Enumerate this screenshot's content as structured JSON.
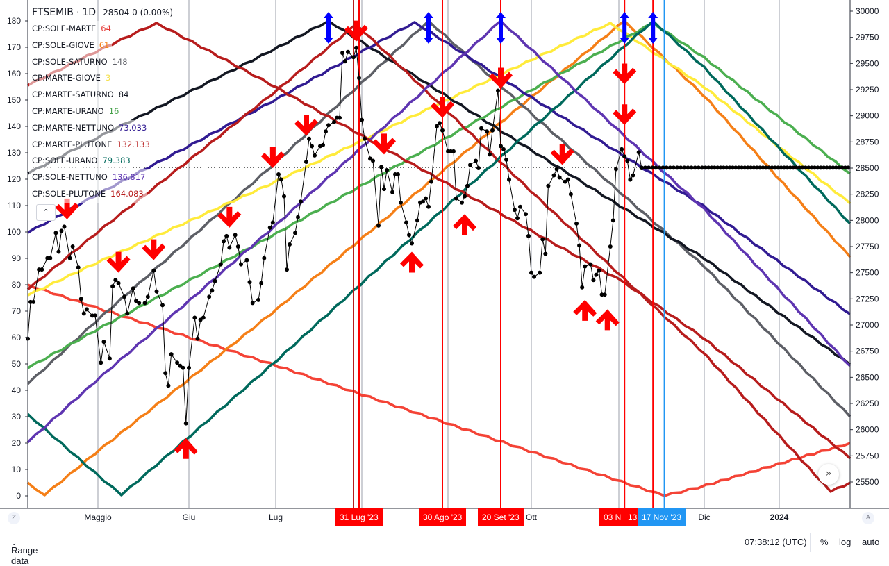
{
  "legend": {
    "symbol": "FTSEMIB",
    "interval": "1D",
    "quote": "28504 0 (0.00%)",
    "items": [
      {
        "label": "CP:SOLE-MARTE",
        "value": "64",
        "color": "#e53935"
      },
      {
        "label": "CP:SOLE-GIOVE",
        "value": "61",
        "color": "#f57f17"
      },
      {
        "label": "CP:SOLE-SATURNO",
        "value": "148",
        "color": "#5d5f66"
      },
      {
        "label": "CP:MARTE-GIOVE",
        "value": "3",
        "color": "#ffeb3b"
      },
      {
        "label": "CP:MARTE-SATURNO",
        "value": "84",
        "color": "#131722"
      },
      {
        "label": "CP:MARTE-URANO",
        "value": "16",
        "color": "#43a047"
      },
      {
        "label": "CP:MARTE-NETTUNO",
        "value": "73.033",
        "color": "#311b92"
      },
      {
        "label": "CP:MARTE-PLUTONE",
        "value": "132.133",
        "color": "#b71c1c"
      },
      {
        "label": "CP:SOLE-URANO",
        "value": "79.383",
        "color": "#00695c"
      },
      {
        "label": "CP:SOLE-NETTUNO",
        "value": "136.817",
        "color": "#5e35b1"
      },
      {
        "label": "CP:SOLE-PLUTONE",
        "value": "164.083",
        "color": "#b71c1c"
      }
    ],
    "collapse_icon": "chevron-up-icon"
  },
  "chart_data": {
    "type": "line",
    "title": "FTSEMIB · 1D",
    "x_range": [
      "2023-04-06",
      "2024-01-30"
    ],
    "x_ticks": [
      {
        "date": "2023-05-01",
        "label": "Maggio"
      },
      {
        "date": "2023-06-01",
        "label": "Giu"
      },
      {
        "date": "2023-07-01",
        "label": "Lug"
      },
      {
        "date": "2023-10-01",
        "label": "Ott"
      },
      {
        "date": "2023-12-01",
        "label": "Dic"
      },
      {
        "date": "2024-01-01",
        "label": "2024",
        "bold": true
      }
    ],
    "grid_dates": [
      "2023-05-01",
      "2023-06-01",
      "2023-07-01",
      "2023-08-01",
      "2023-09-01",
      "2023-10-01",
      "2023-11-01",
      "2023-12-01",
      "2024-01-01"
    ],
    "left_axis": {
      "range": [
        0,
        180
      ],
      "ticks": [
        0,
        10,
        20,
        30,
        40,
        50,
        60,
        70,
        80,
        90,
        100,
        110,
        120,
        130,
        140,
        150,
        160,
        170,
        180
      ]
    },
    "right_axis": {
      "range": [
        25500,
        30000
      ],
      "ticks": [
        25500,
        25750,
        26000,
        26250,
        26500,
        26750,
        27000,
        27250,
        27500,
        27750,
        28000,
        28250,
        28500,
        28750,
        29000,
        29250,
        29500,
        29750,
        30000
      ]
    },
    "cycle_series": [
      {
        "name": "CP:SOLE-MARTE",
        "color": "#f44336",
        "points": [
          [
            "2023-04-06",
            80
          ],
          [
            "2023-11-17",
            0
          ],
          [
            "2024-01-30",
            20
          ]
        ]
      },
      {
        "name": "CP:SOLE-GIOVE",
        "color": "#f57f17",
        "points": [
          [
            "2023-04-06",
            5
          ],
          [
            "2023-04-12",
            0.3
          ],
          [
            "2023-11-03",
            180
          ],
          [
            "2024-01-30",
            90.5
          ]
        ]
      },
      {
        "name": "CP:SOLE-SATURNO",
        "color": "#5d5f66",
        "points": [
          [
            "2023-04-06",
            42.4
          ],
          [
            "2023-08-25",
            180
          ],
          [
            "2024-01-30",
            30
          ]
        ]
      },
      {
        "name": "CP:MARTE-GIOVE",
        "color": "#ffeb3b",
        "points": [
          [
            "2023-04-06",
            76
          ],
          [
            "2023-10-29",
            179.2
          ],
          [
            "2024-01-30",
            110.8
          ]
        ]
      },
      {
        "name": "CP:MARTE-SATURNO",
        "color": "#131722",
        "points": [
          [
            "2023-04-06",
            122.1
          ],
          [
            "2023-07-20",
            180
          ],
          [
            "2024-01-30",
            49.7
          ]
        ]
      },
      {
        "name": "CP:MARTE-URANO",
        "color": "#4caf50",
        "points": [
          [
            "2023-04-06",
            48.4
          ],
          [
            "2023-11-13",
            179.2
          ],
          [
            "2024-01-30",
            122.1
          ]
        ]
      },
      {
        "name": "CP:MARTE-NETTUNO",
        "color": "#311b92",
        "points": [
          [
            "2023-04-06",
            99.7
          ],
          [
            "2023-08-20",
            179.5
          ],
          [
            "2024-01-30",
            68.9
          ]
        ]
      },
      {
        "name": "CP:MARTE-PLUTONE",
        "color": "#b71c1c",
        "points": [
          [
            "2023-04-06",
            78.2
          ],
          [
            "2023-07-30",
            178.7
          ],
          [
            "2024-01-22",
            1.6
          ],
          [
            "2024-01-30",
            5
          ]
        ]
      },
      {
        "name": "CP:SOLE-URANO",
        "color": "#00695c",
        "points": [
          [
            "2023-04-06",
            31
          ],
          [
            "2023-05-09",
            0.3
          ],
          [
            "2023-11-13",
            180
          ],
          [
            "2024-01-30",
            103.2
          ]
        ]
      },
      {
        "name": "CP:SOLE-NETTUNO",
        "color": "#5e35b1",
        "points": [
          [
            "2023-04-06",
            20.3
          ],
          [
            "2023-09-20",
            180
          ],
          [
            "2024-01-30",
            49.2
          ]
        ]
      },
      {
        "name": "CP:SOLE-PLUTONE",
        "color": "#b71c1c",
        "points": [
          [
            "2023-04-06",
            155.5
          ],
          [
            "2023-05-21",
            179.2
          ],
          [
            "2023-11-03",
            80.8
          ],
          [
            "2024-01-30",
            14.2
          ]
        ]
      }
    ],
    "price": {
      "name": "FTSEMIB",
      "axis": "right",
      "points": [
        [
          "2023-04-06",
          26870
        ],
        [
          "2023-04-07",
          27220
        ],
        [
          "2023-04-08",
          27220
        ],
        [
          "2023-04-10",
          27530
        ],
        [
          "2023-04-11",
          27530
        ],
        [
          "2023-04-13",
          27640
        ],
        [
          "2023-04-14",
          27640
        ],
        [
          "2023-04-16",
          27880
        ],
        [
          "2023-04-17",
          27700
        ],
        [
          "2023-04-18",
          27900
        ],
        [
          "2023-04-19",
          27940
        ],
        [
          "2023-04-21",
          27640
        ],
        [
          "2023-04-22",
          27750
        ],
        [
          "2023-04-24",
          27550
        ],
        [
          "2023-04-25",
          27250
        ],
        [
          "2023-04-26",
          27110
        ],
        [
          "2023-04-27",
          27150
        ],
        [
          "2023-04-29",
          27090
        ],
        [
          "2023-04-30",
          27090
        ],
        [
          "2023-05-02",
          26640
        ],
        [
          "2023-05-03",
          26840
        ],
        [
          "2023-05-05",
          26680
        ],
        [
          "2023-05-06",
          27370
        ],
        [
          "2023-05-07",
          27430
        ],
        [
          "2023-05-08",
          27400
        ],
        [
          "2023-05-10",
          27270
        ],
        [
          "2023-05-11",
          27110
        ],
        [
          "2023-05-13",
          27350
        ],
        [
          "2023-05-14",
          27230
        ],
        [
          "2023-05-15",
          27210
        ],
        [
          "2023-05-17",
          27210
        ],
        [
          "2023-05-18",
          27270
        ],
        [
          "2023-05-20",
          27520
        ],
        [
          "2023-05-21",
          27320
        ],
        [
          "2023-05-23",
          27190
        ],
        [
          "2023-05-24",
          26540
        ],
        [
          "2023-05-25",
          26420
        ],
        [
          "2023-05-26",
          26720
        ],
        [
          "2023-05-28",
          26640
        ],
        [
          "2023-05-29",
          26610
        ],
        [
          "2023-05-30",
          26590
        ],
        [
          "2023-05-31",
          26060
        ],
        [
          "2023-06-01",
          26590
        ],
        [
          "2023-06-03",
          27070
        ],
        [
          "2023-06-04",
          26870
        ],
        [
          "2023-06-05",
          27050
        ],
        [
          "2023-06-06",
          27070
        ],
        [
          "2023-06-08",
          27270
        ],
        [
          "2023-06-09",
          27330
        ],
        [
          "2023-06-10",
          27420
        ],
        [
          "2023-06-12",
          27580
        ],
        [
          "2023-06-13",
          27800
        ],
        [
          "2023-06-14",
          27850
        ],
        [
          "2023-06-15",
          27740
        ],
        [
          "2023-06-17",
          27860
        ],
        [
          "2023-06-18",
          27750
        ],
        [
          "2023-06-19",
          27580
        ],
        [
          "2023-06-21",
          27620
        ],
        [
          "2023-06-22",
          27410
        ],
        [
          "2023-06-23",
          27210
        ],
        [
          "2023-06-25",
          27240
        ],
        [
          "2023-06-26",
          27400
        ],
        [
          "2023-06-27",
          27640
        ],
        [
          "2023-06-29",
          27930
        ],
        [
          "2023-06-30",
          27980
        ],
        [
          "2023-07-02",
          28440
        ],
        [
          "2023-07-03",
          28390
        ],
        [
          "2023-07-04",
          28230
        ],
        [
          "2023-07-05",
          27530
        ],
        [
          "2023-07-06",
          27770
        ],
        [
          "2023-07-08",
          27880
        ],
        [
          "2023-07-09",
          28030
        ],
        [
          "2023-07-10",
          28180
        ],
        [
          "2023-07-12",
          28560
        ],
        [
          "2023-07-13",
          28780
        ],
        [
          "2023-07-14",
          28710
        ],
        [
          "2023-07-15",
          28620
        ],
        [
          "2023-07-17",
          28710
        ],
        [
          "2023-07-18",
          28720
        ],
        [
          "2023-07-19",
          28850
        ],
        [
          "2023-07-20",
          28910
        ],
        [
          "2023-07-22",
          28940
        ],
        [
          "2023-07-23",
          28980
        ],
        [
          "2023-07-24",
          28980
        ],
        [
          "2023-07-25",
          29600
        ],
        [
          "2023-07-26",
          29520
        ],
        [
          "2023-07-27",
          29610
        ],
        [
          "2023-07-29",
          29560
        ],
        [
          "2023-07-30",
          29650
        ],
        [
          "2023-07-31",
          29360
        ],
        [
          "2023-08-01",
          28960
        ],
        [
          "2023-08-02",
          28780
        ],
        [
          "2023-08-04",
          28590
        ],
        [
          "2023-08-05",
          28570
        ],
        [
          "2023-08-07",
          27950
        ],
        [
          "2023-08-08",
          28510
        ],
        [
          "2023-08-09",
          28300
        ],
        [
          "2023-08-10",
          28480
        ],
        [
          "2023-08-12",
          28270
        ],
        [
          "2023-08-13",
          28440
        ],
        [
          "2023-08-14",
          28440
        ],
        [
          "2023-08-15",
          28170
        ],
        [
          "2023-08-17",
          27980
        ],
        [
          "2023-08-18",
          27860
        ],
        [
          "2023-08-19",
          27780
        ],
        [
          "2023-08-21",
          28000
        ],
        [
          "2023-08-22",
          28170
        ],
        [
          "2023-08-23",
          28180
        ],
        [
          "2023-08-24",
          28210
        ],
        [
          "2023-08-25",
          28130
        ],
        [
          "2023-08-26",
          28370
        ],
        [
          "2023-08-28",
          28900
        ],
        [
          "2023-08-29",
          28930
        ],
        [
          "2023-08-30",
          28860
        ],
        [
          "2023-09-01",
          28660
        ],
        [
          "2023-09-02",
          28660
        ],
        [
          "2023-09-03",
          28660
        ],
        [
          "2023-09-04",
          28210
        ],
        [
          "2023-09-06",
          28170
        ],
        [
          "2023-09-07",
          28230
        ],
        [
          "2023-09-08",
          28330
        ],
        [
          "2023-09-09",
          28530
        ],
        [
          "2023-09-11",
          28570
        ],
        [
          "2023-09-12",
          28500
        ],
        [
          "2023-09-13",
          28880
        ],
        [
          "2023-09-15",
          28850
        ],
        [
          "2023-09-16",
          28630
        ],
        [
          "2023-09-17",
          28860
        ],
        [
          "2023-09-19",
          29240
        ],
        [
          "2023-09-20",
          28710
        ],
        [
          "2023-09-21",
          28680
        ],
        [
          "2023-09-22",
          28580
        ],
        [
          "2023-09-23",
          28390
        ],
        [
          "2023-09-25",
          28100
        ],
        [
          "2023-09-26",
          28020
        ],
        [
          "2023-09-27",
          28130
        ],
        [
          "2023-09-29",
          28060
        ],
        [
          "2023-09-30",
          27850
        ],
        [
          "2023-10-01",
          27500
        ],
        [
          "2023-10-02",
          27460
        ],
        [
          "2023-10-04",
          27500
        ],
        [
          "2023-10-05",
          27820
        ],
        [
          "2023-10-06",
          27680
        ],
        [
          "2023-10-07",
          28330
        ],
        [
          "2023-10-09",
          28430
        ],
        [
          "2023-10-10",
          28490
        ],
        [
          "2023-10-11",
          28410
        ],
        [
          "2023-10-13",
          28370
        ],
        [
          "2023-10-14",
          28390
        ],
        [
          "2023-10-15",
          28250
        ],
        [
          "2023-10-17",
          27970
        ],
        [
          "2023-10-18",
          27760
        ],
        [
          "2023-10-19",
          27360
        ],
        [
          "2023-10-20",
          27560
        ],
        [
          "2023-10-22",
          27580
        ],
        [
          "2023-10-23",
          27430
        ],
        [
          "2023-10-24",
          27480
        ],
        [
          "2023-10-25",
          27520
        ],
        [
          "2023-10-26",
          27290
        ],
        [
          "2023-10-27",
          27290
        ],
        [
          "2023-10-29",
          27750
        ],
        [
          "2023-10-30",
          28000
        ],
        [
          "2023-10-31",
          28490
        ],
        [
          "2023-11-02",
          28680
        ],
        [
          "2023-11-03",
          28610
        ],
        [
          "2023-11-04",
          28570
        ],
        [
          "2023-11-05",
          28390
        ],
        [
          "2023-11-06",
          28430
        ],
        [
          "2023-11-08",
          28650
        ],
        [
          "2023-11-09",
          28500
        ]
      ]
    },
    "projection": {
      "value": 28504,
      "from": "2023-11-09",
      "to": "2024-01-30"
    },
    "last_value_line": 28504,
    "vertical_markers": [
      {
        "date": "2023-07-29",
        "color": "#b71c1c"
      },
      {
        "date": "2023-07-31",
        "color": "#ff0000"
      },
      {
        "date": "2023-08-30",
        "color": "#ff0000"
      },
      {
        "date": "2023-09-20",
        "color": "#ff0000"
      },
      {
        "date": "2023-11-03",
        "color": "#ff0000"
      },
      {
        "date": "2023-11-13",
        "color": "#ff0000"
      },
      {
        "date": "2023-11-17",
        "color": "#2196f3"
      }
    ],
    "date_tags": [
      {
        "date": "2023-07-31",
        "text": "31 Lug '23",
        "color": "#ff0000"
      },
      {
        "date": "2023-08-30",
        "text": "30 Ago '23",
        "color": "#ff0000"
      },
      {
        "date": "2023-09-20",
        "text": "20 Set '23",
        "color": "#ff0000"
      },
      {
        "date": "2023-11-03",
        "text": "03 N",
        "color": "#ff0000"
      },
      {
        "date": "2023-11-13",
        "text": "13",
        "color": "#ff0000"
      },
      {
        "date": "2023-11-17",
        "text": "17 Nov '23",
        "color": "#2196f3"
      }
    ],
    "arrows_down": [
      [
        "2023-04-20",
        28010
      ],
      [
        "2023-05-08",
        27500
      ],
      [
        "2023-05-20",
        27620
      ],
      [
        "2023-06-15",
        27930
      ],
      [
        "2023-06-30",
        28500
      ],
      [
        "2023-07-12",
        28810
      ],
      [
        "2023-07-30",
        29710
      ],
      [
        "2023-08-09",
        28630
      ],
      [
        "2023-08-30",
        28980
      ],
      [
        "2023-09-20",
        29260
      ],
      [
        "2023-10-12",
        28530
      ],
      [
        "2023-11-03",
        29300
      ],
      [
        "2023-11-03",
        28910
      ]
    ],
    "arrows_up": [
      [
        "2023-05-31",
        25920
      ],
      [
        "2023-08-19",
        27700
      ],
      [
        "2023-09-07",
        28060
      ],
      [
        "2023-10-20",
        27240
      ],
      [
        "2023-10-28",
        27150
      ]
    ],
    "double_arrows": [
      "2023-07-20",
      "2023-08-25",
      "2023-09-20",
      "2023-11-03",
      "2023-11-13"
    ],
    "arrow_color": "#ff0000",
    "double_arrow_color": "#0000ff",
    "grid": true
  },
  "axis_buttons": {
    "left": "Z",
    "right": "A"
  },
  "scroll_button_icon": "double-chevron-right-icon",
  "bottom": {
    "range_label": "Range data",
    "time": "07:38:12 (UTC)",
    "percent": "%",
    "log": "log",
    "auto": "auto"
  }
}
